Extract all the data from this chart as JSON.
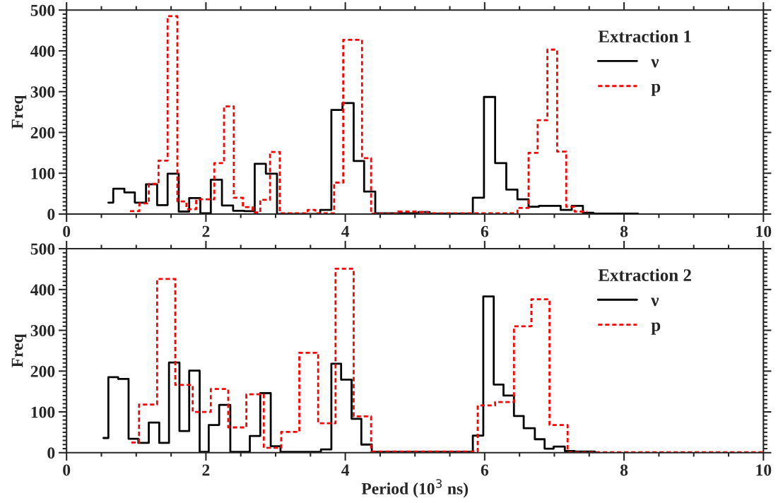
{
  "chart_data": [
    {
      "type": "step",
      "legend_title": "Extraction 1",
      "ylabel": "Freq",
      "xlim": [
        0,
        10
      ],
      "xticks": [
        0,
        2,
        4,
        6,
        8,
        10
      ],
      "ylim": [
        0,
        500
      ],
      "yticks": [
        0,
        100,
        200,
        300,
        400,
        500
      ],
      "legend": "top right",
      "grid": false,
      "marker": "none",
      "series": [
        {
          "name": "ν",
          "color": "#000000",
          "line_style": "solid",
          "x": [
            0.6,
            0.67,
            0.83,
            0.98,
            1.14,
            1.3,
            1.45,
            1.61,
            1.76,
            1.92,
            2.07,
            2.23,
            2.39,
            2.55,
            2.7,
            2.86,
            3.02,
            3.64,
            3.8,
            3.96,
            4.12,
            4.27,
            4.43,
            5.05,
            5.21,
            5.83,
            5.99,
            6.15,
            6.31,
            6.47,
            6.63,
            6.78,
            7.09,
            7.25,
            7.41,
            7.56,
            8.2
          ],
          "values": [
            28,
            62,
            53,
            28,
            73,
            22,
            99,
            6,
            39,
            2,
            84,
            21,
            8,
            7,
            123,
            99,
            0,
            10,
            255,
            272,
            130,
            55,
            2,
            5,
            1,
            40,
            287,
            125,
            60,
            36,
            18,
            20,
            10,
            20,
            3,
            1,
            1
          ]
        },
        {
          "name": "p",
          "color": "#ff0000",
          "line_style": "dashed",
          "x": [
            0.91,
            1.045,
            1.18,
            1.32,
            1.45,
            1.59,
            1.72,
            1.86,
            2.12,
            2.26,
            2.4,
            2.53,
            2.67,
            2.78,
            2.92,
            3.06,
            3.46,
            3.57,
            3.84,
            3.97,
            4.24,
            4.37,
            4.76,
            5.03,
            5.18,
            6.47,
            6.63,
            6.76,
            6.9,
            7.04,
            7.17,
            7.29,
            7.47
          ],
          "values": [
            7,
            26,
            74,
            131,
            485,
            31,
            12,
            36,
            125,
            264,
            40,
            17,
            4,
            35,
            152,
            2,
            10,
            2,
            77,
            427,
            137,
            1,
            6,
            5,
            2,
            15,
            150,
            230,
            403,
            153,
            18,
            6,
            6
          ]
        }
      ]
    },
    {
      "type": "step",
      "legend_title": "Extraction 2",
      "ylabel": "Freq",
      "xlabel": "Period (10$^{3}$ ns)",
      "xlim": [
        0,
        10
      ],
      "xticks": [
        0,
        2,
        4,
        6,
        8,
        10
      ],
      "ylim": [
        0,
        500
      ],
      "yticks": [
        0,
        100,
        200,
        300,
        400,
        500
      ],
      "legend": "top right",
      "grid": false,
      "marker": "none",
      "series": [
        {
          "name": "ν",
          "color": "#000000",
          "line_style": "solid",
          "x": [
            0.53,
            0.6,
            0.74,
            0.89,
            1.03,
            1.18,
            1.33,
            1.47,
            1.62,
            1.76,
            1.91,
            2.04,
            2.19,
            2.35,
            2.63,
            2.78,
            2.93,
            3.07,
            3.65,
            3.8,
            3.94,
            4.09,
            4.23,
            4.38,
            5.83,
            5.98,
            6.13,
            6.27,
            6.42,
            6.56,
            6.72,
            6.86,
            6.99,
            7.15,
            7.29,
            7.58
          ],
          "values": [
            36,
            185,
            181,
            34,
            24,
            74,
            24,
            221,
            53,
            201,
            2,
            68,
            117,
            2,
            41,
            146,
            16,
            2,
            8,
            218,
            179,
            83,
            20,
            2,
            42,
            383,
            167,
            140,
            90,
            60,
            33,
            10,
            15,
            4,
            3,
            3
          ]
        },
        {
          "name": "p",
          "color": "#ff0000",
          "line_style": "dashed",
          "x": [
            0.93,
            1.04,
            1.3,
            1.56,
            1.81,
            2.07,
            2.32,
            2.58,
            2.83,
            3.08,
            3.34,
            3.61,
            3.86,
            4.12,
            4.37,
            5.9,
            6.15,
            6.42,
            6.67,
            6.93,
            7.19,
            10
          ],
          "values": [
            25,
            118,
            426,
            166,
            100,
            156,
            62,
            143,
            12,
            51,
            245,
            72,
            451,
            89,
            3,
            116,
            124,
            310,
            376,
            68,
            1,
            1
          ]
        }
      ]
    }
  ]
}
